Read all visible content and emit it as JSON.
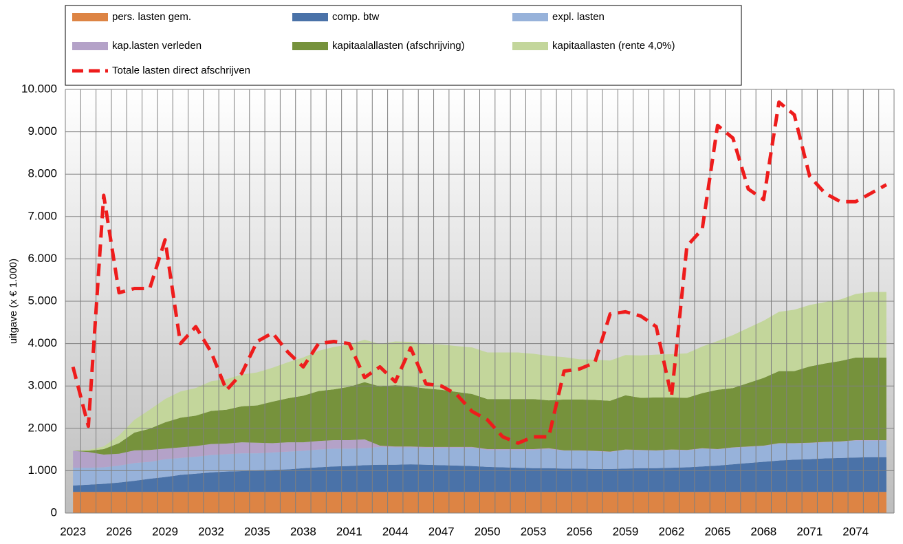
{
  "chart_data": {
    "type": "stacked-area",
    "y_label": "uitgave (x € 1.000)",
    "categories": [
      2023,
      null,
      null,
      2026,
      null,
      null,
      2029,
      null,
      null,
      2032,
      null,
      null,
      2035,
      null,
      null,
      2038,
      null,
      null,
      2041,
      null,
      null,
      2044,
      null,
      null,
      2047,
      null,
      null,
      2050,
      null,
      null,
      2053,
      null,
      null,
      2056,
      null,
      null,
      2059,
      null,
      null,
      2062,
      null,
      null,
      2065,
      null,
      null,
      2068,
      null,
      null,
      2071,
      null,
      null,
      2074,
      null,
      null
    ],
    "series": [
      {
        "name": "pers. lasten gem.",
        "color": "#dd8444",
        "values": [
          500,
          500,
          500,
          500,
          500,
          500,
          500,
          500,
          500,
          500,
          500,
          500,
          500,
          500,
          500,
          500,
          500,
          500,
          500,
          500,
          500,
          500,
          500,
          500,
          500,
          500,
          500,
          500,
          500,
          500,
          500,
          500,
          500,
          500,
          500,
          500,
          500,
          500,
          500,
          500,
          500,
          500,
          500,
          500,
          500,
          500,
          500,
          500,
          500,
          500,
          500,
          500,
          500,
          500
        ]
      },
      {
        "name": "comp. btw",
        "color": "#4a72a8",
        "values": [
          150,
          170,
          190,
          220,
          260,
          310,
          350,
          400,
          430,
          460,
          480,
          490,
          510,
          520,
          530,
          560,
          580,
          600,
          610,
          630,
          640,
          640,
          650,
          640,
          630,
          620,
          610,
          590,
          580,
          570,
          560,
          560,
          550,
          550,
          540,
          540,
          550,
          560,
          560,
          570,
          580,
          600,
          620,
          650,
          680,
          710,
          740,
          760,
          770,
          790,
          800,
          810,
          820,
          820
        ]
      },
      {
        "name": "expl. lasten",
        "color": "#97b2da",
        "values": [
          420,
          400,
          390,
          400,
          420,
          400,
          420,
          400,
          400,
          410,
          410,
          420,
          400,
          410,
          420,
          410,
          420,
          420,
          410,
          400,
          420,
          410,
          400,
          400,
          410,
          420,
          430,
          400,
          410,
          420,
          430,
          450,
          420,
          420,
          420,
          400,
          440,
          420,
          410,
          420,
          400,
          420,
          380,
          390,
          380,
          370,
          400,
          380,
          380,
          380,
          380,
          400,
          390,
          390
        ]
      },
      {
        "name": "kap.lasten verleden",
        "color": "#b4a2c8",
        "values": [
          400,
          370,
          300,
          280,
          300,
          280,
          250,
          250,
          250,
          260,
          250,
          260,
          250,
          220,
          220,
          200,
          200,
          200,
          200,
          210,
          30,
          20,
          20,
          20,
          20,
          20,
          20,
          20,
          20,
          20,
          20,
          20,
          10,
          10,
          10,
          10,
          10,
          10,
          10,
          10,
          10,
          10,
          10,
          10,
          10,
          10,
          10,
          10,
          10,
          10,
          10,
          10,
          10,
          10
        ]
      },
      {
        "name": "kapitaalallasten   (afschrijving)",
        "color": "#76923c",
        "values": [
          0,
          30,
          130,
          250,
          420,
          500,
          620,
          700,
          720,
          780,
          800,
          850,
          880,
          980,
          1040,
          1100,
          1180,
          1200,
          1260,
          1350,
          1400,
          1450,
          1420,
          1380,
          1350,
          1300,
          1250,
          1180,
          1180,
          1180,
          1180,
          1130,
          1200,
          1200,
          1200,
          1200,
          1280,
          1230,
          1250,
          1230,
          1230,
          1300,
          1400,
          1400,
          1500,
          1600,
          1700,
          1700,
          1800,
          1850,
          1900,
          1950,
          1950,
          1950
        ]
      },
      {
        "name": "kapitaallasten (rente 4,0%)",
        "color": "#c3d69b",
        "values": [
          0,
          20,
          60,
          180,
          300,
          450,
          550,
          620,
          650,
          700,
          720,
          750,
          780,
          800,
          850,
          900,
          950,
          1000,
          1000,
          1000,
          1000,
          1030,
          1050,
          1050,
          1070,
          1080,
          1100,
          1100,
          1100,
          1100,
          1070,
          1050,
          1000,
          950,
          950,
          950,
          950,
          1000,
          1010,
          1020,
          1050,
          1100,
          1150,
          1250,
          1300,
          1350,
          1400,
          1450,
          1450,
          1450,
          1450,
          1500,
          1550,
          1550
        ]
      },
      {
        "name": "Totale lasten direct afschrijven",
        "color": "#ee1c1c",
        "type": "line",
        "values": [
          3450,
          2050,
          7500,
          5200,
          5300,
          5300,
          6450,
          4000,
          4400,
          3800,
          2900,
          3300,
          4050,
          4250,
          3800,
          3450,
          4000,
          4050,
          4000,
          3200,
          3450,
          3100,
          3900,
          3050,
          3000,
          2800,
          2400,
          2200,
          1800,
          1650,
          1800,
          1800,
          3350,
          3400,
          3550,
          4700,
          4750,
          4650,
          4400,
          2750,
          6300,
          6700,
          9150,
          8850,
          7650,
          7400,
          9700,
          9400,
          7950,
          7550,
          7350,
          7350,
          7550,
          7750
        ]
      }
    ],
    "ylim": [
      0,
      10000
    ],
    "yticks": [
      0,
      {
        "value": 1000,
        "label": "1.000"
      },
      {
        "value": 2000,
        "label": "2.000"
      },
      {
        "value": 3000,
        "label": "3.000"
      },
      {
        "value": 4000,
        "label": "4.000"
      },
      {
        "value": 5000,
        "label": "5.000"
      },
      {
        "value": 6000,
        "label": "6.000"
      },
      {
        "value": 7000,
        "label": "7.000"
      },
      {
        "value": 8000,
        "label": "8.000"
      },
      {
        "value": 9000,
        "label": "9.000"
      },
      {
        "value": 10000,
        "label": "10.000"
      }
    ],
    "grid": true
  }
}
